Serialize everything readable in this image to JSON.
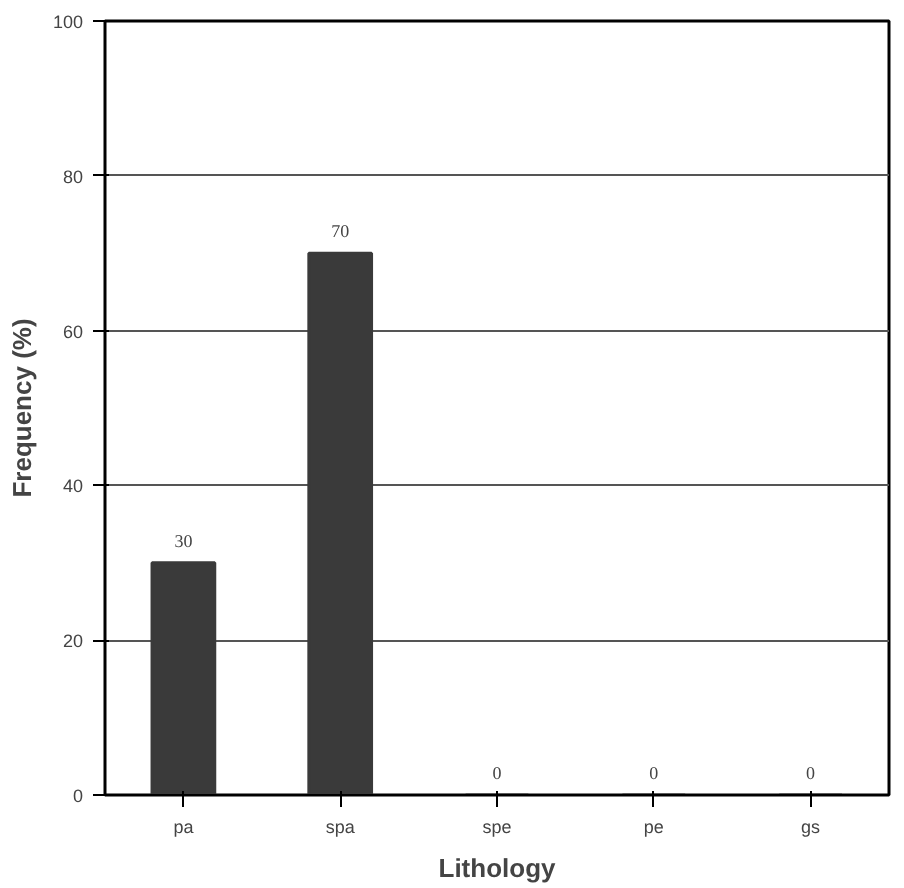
{
  "chart_data": {
    "type": "bar",
    "xlabel": "Lithology",
    "ylabel": "Frequency (%)",
    "categories": [
      "pa",
      "spa",
      "spe",
      "pe",
      "gs"
    ],
    "values": [
      30,
      70,
      0,
      0,
      0
    ],
    "color": "#3a3a3a",
    "ylim": [
      0,
      100
    ],
    "yticks": [
      0,
      20,
      40,
      60,
      80,
      100
    ],
    "grid": "y",
    "data_labels": true
  }
}
